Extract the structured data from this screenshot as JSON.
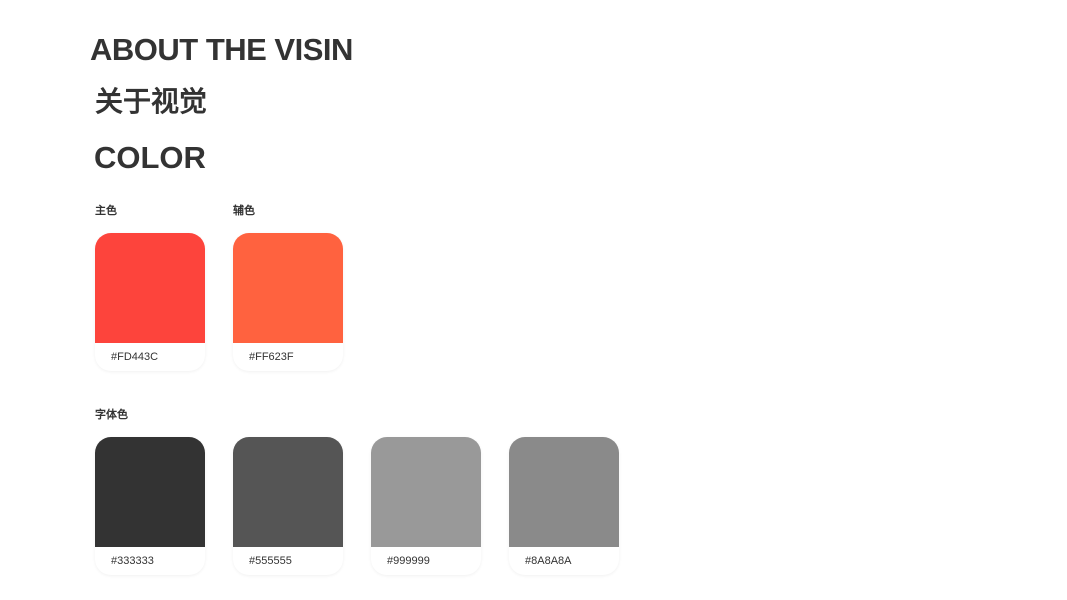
{
  "title_en": "ABOUT THE VISIN",
  "title_cn": "关于视觉",
  "section": "COLOR",
  "groups": {
    "primary": {
      "label": "主色",
      "colors": [
        {
          "hex": "#FD443C"
        }
      ]
    },
    "secondary": {
      "label": "辅色",
      "colors": [
        {
          "hex": "#FF623F"
        }
      ]
    },
    "text": {
      "label": "字体色",
      "colors": [
        {
          "hex": "#333333"
        },
        {
          "hex": "#555555"
        },
        {
          "hex": "#999999"
        },
        {
          "hex": "#8A8A8A"
        }
      ]
    }
  }
}
